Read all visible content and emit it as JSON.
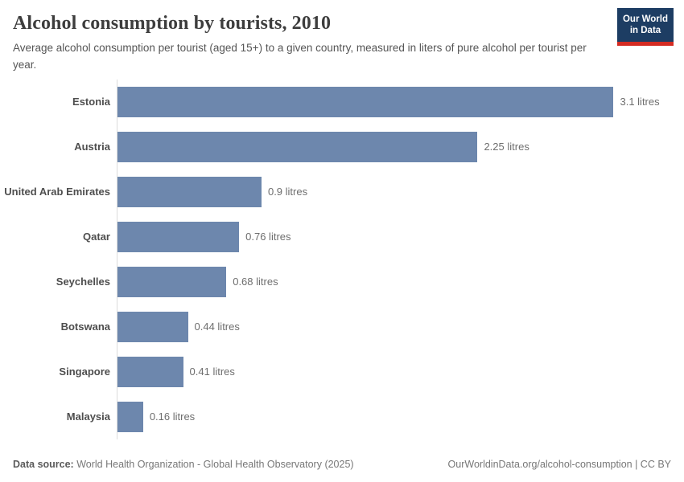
{
  "header": {
    "title": "Alcohol consumption by tourists, 2010",
    "subtitle": "Average alcohol consumption per tourist (aged 15+) to a given country, measured in liters of pure alcohol per tourist per year.",
    "logo": {
      "line1": "Our World",
      "line2": "in Data"
    }
  },
  "chart_data": {
    "type": "bar",
    "orientation": "horizontal",
    "title": "Alcohol consumption by tourists, 2010",
    "categories": [
      "Estonia",
      "Austria",
      "United Arab Emirates",
      "Qatar",
      "Seychelles",
      "Botswana",
      "Singapore",
      "Malaysia"
    ],
    "values": [
      3.1,
      2.25,
      0.9,
      0.76,
      0.68,
      0.44,
      0.41,
      0.16
    ],
    "value_labels": [
      "3.1 litres",
      "2.25 litres",
      "0.9 litres",
      "0.76 litres",
      "0.68 litres",
      "0.44 litres",
      "0.41 litres",
      "0.16 litres"
    ],
    "unit": "litres",
    "xlabel": "",
    "ylabel": "",
    "xlim": [
      0,
      3.54
    ],
    "grid": false,
    "legend": false,
    "bar_color": "#6d87ad",
    "axis_line_color": "#dcdcdc"
  },
  "footer": {
    "datasource_label": "Data source:",
    "datasource_text": " World Health Organization - Global Health Observatory (2025)",
    "link_text": "OurWorldinData.org/alcohol-consumption | CC BY"
  },
  "colors": {
    "bar": "#6d87ad",
    "logo_navy": "#1d3d63",
    "logo_red": "#d42b22",
    "title_text": "#3d3d3d",
    "subtitle_text": "#555555",
    "label_text": "#4e4e4e",
    "value_text": "#6e6e6e"
  }
}
